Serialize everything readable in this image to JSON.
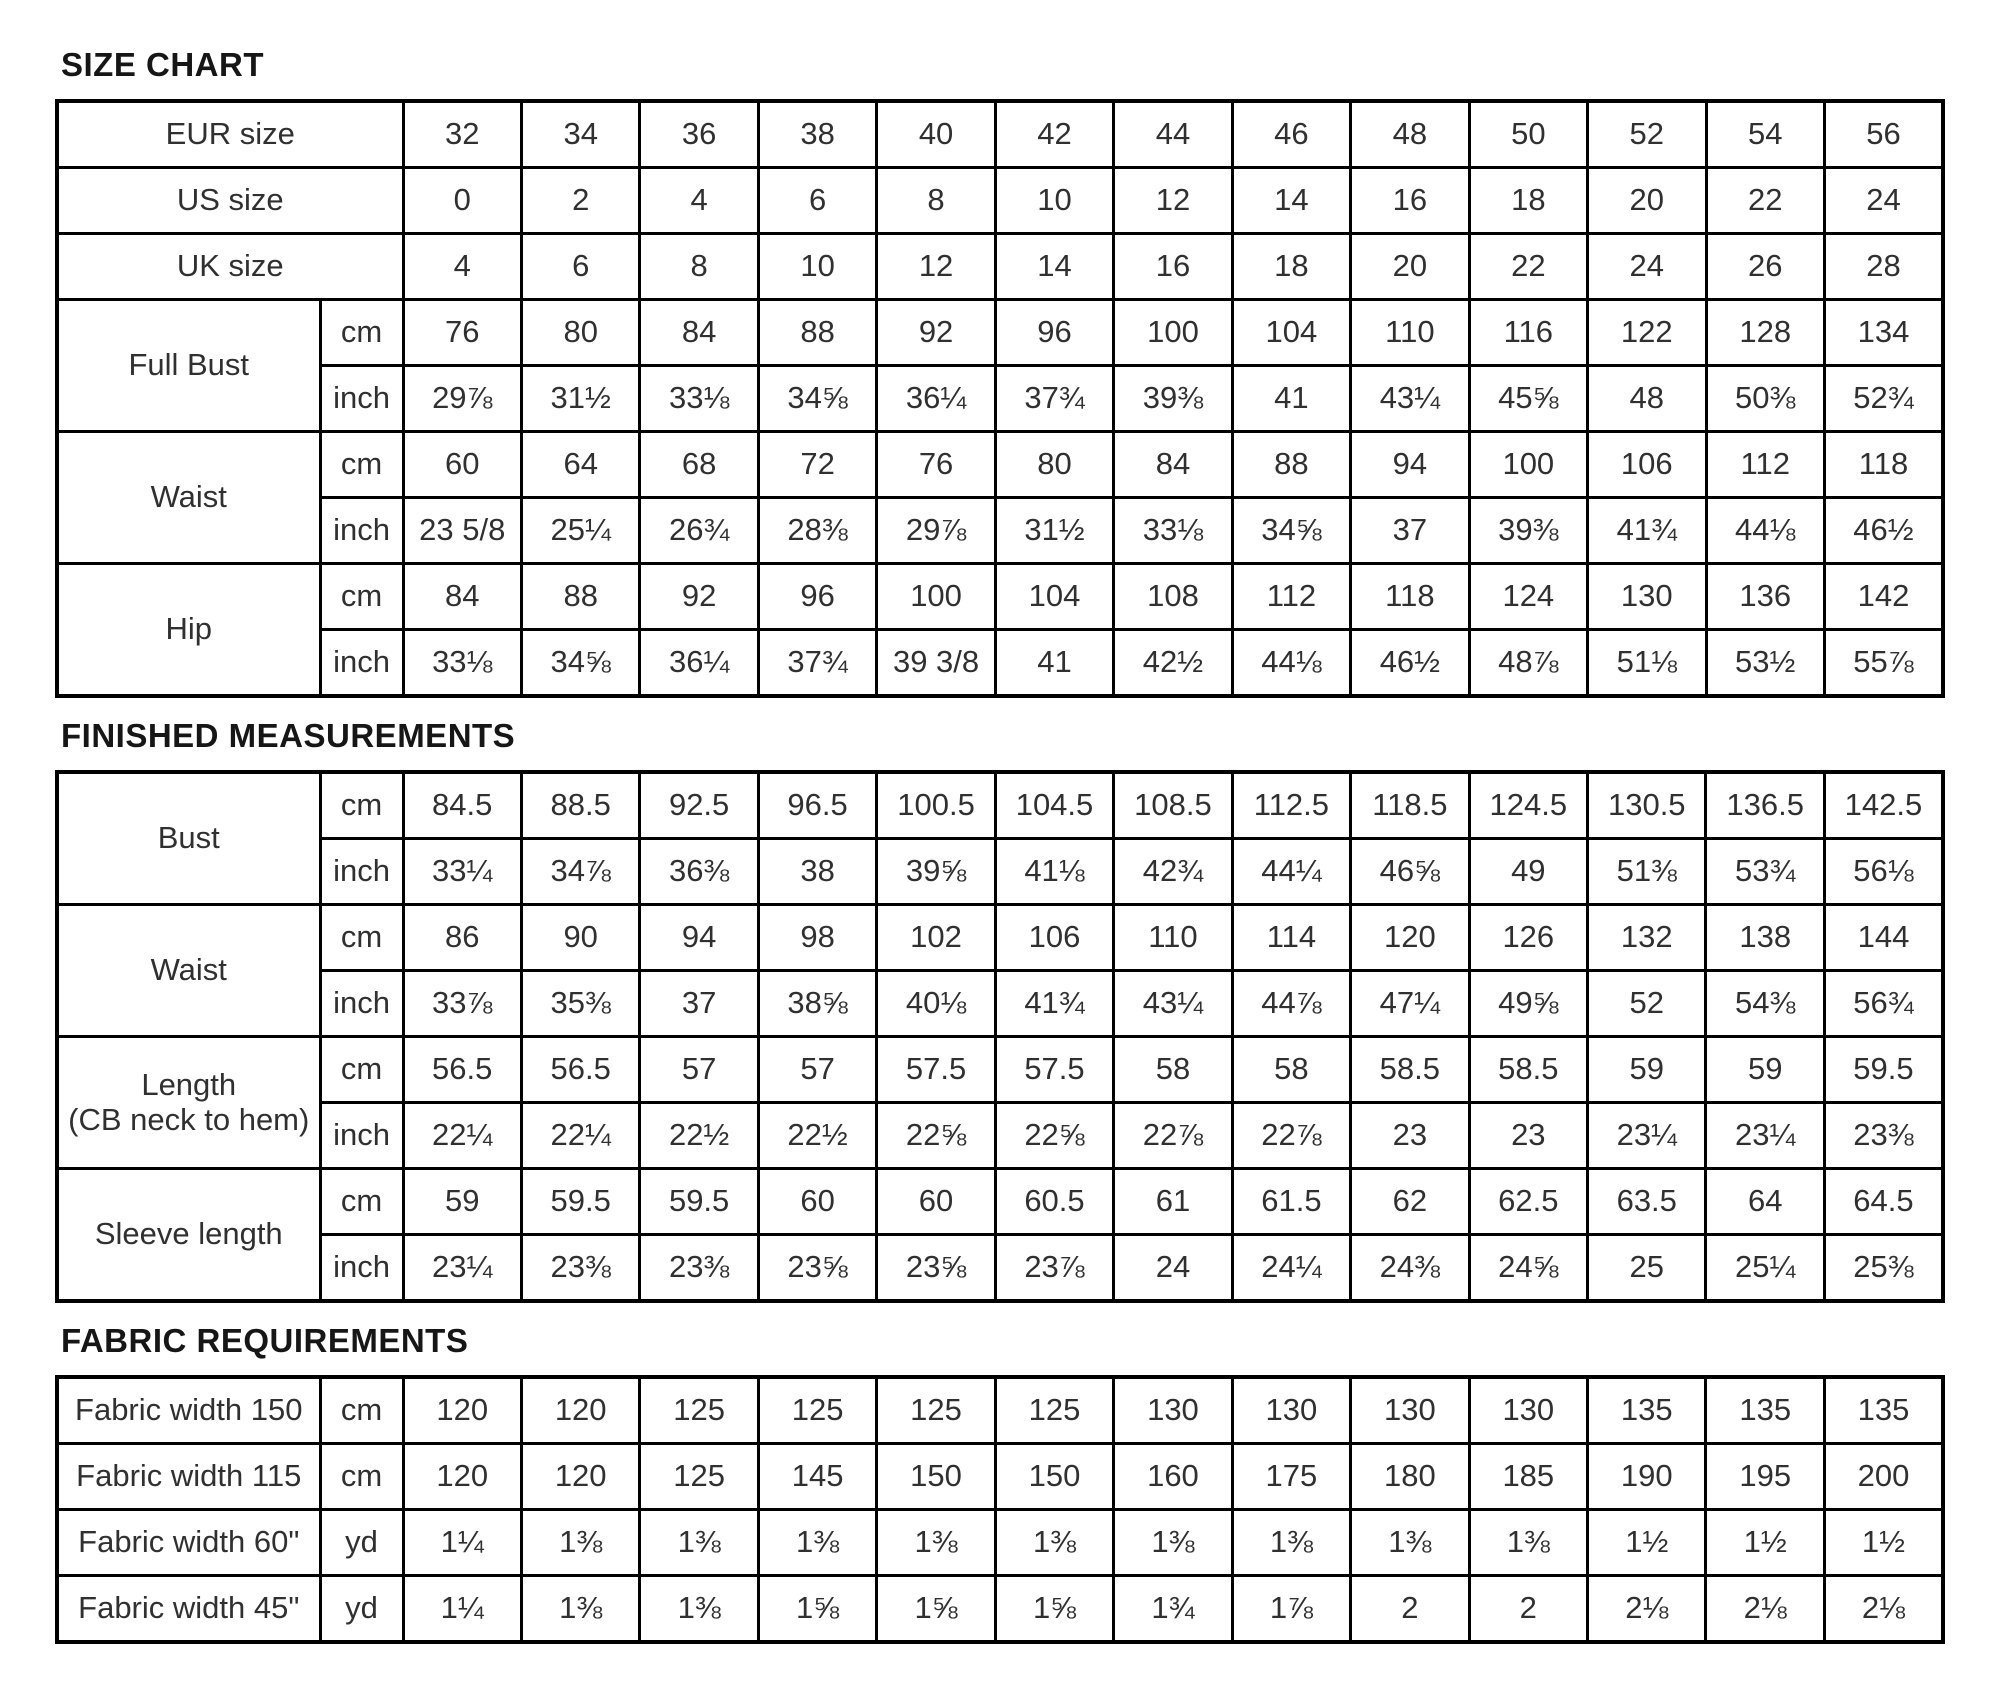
{
  "document": {
    "sections": [
      {
        "id": "size-chart",
        "title": "SIZE CHART",
        "rows": [
          {
            "label": "EUR size",
            "subrows": [
              {
                "unit": "",
                "values": [
                  "32",
                  "34",
                  "36",
                  "38",
                  "40",
                  "42",
                  "44",
                  "46",
                  "48",
                  "50",
                  "52",
                  "54",
                  "56"
                ]
              }
            ]
          },
          {
            "label": "US size",
            "subrows": [
              {
                "unit": "",
                "values": [
                  "0",
                  "2",
                  "4",
                  "6",
                  "8",
                  "10",
                  "12",
                  "14",
                  "16",
                  "18",
                  "20",
                  "22",
                  "24"
                ]
              }
            ]
          },
          {
            "label": "UK size",
            "subrows": [
              {
                "unit": "",
                "values": [
                  "4",
                  "6",
                  "8",
                  "10",
                  "12",
                  "14",
                  "16",
                  "18",
                  "20",
                  "22",
                  "24",
                  "26",
                  "28"
                ]
              }
            ]
          },
          {
            "label": "Full Bust",
            "subrows": [
              {
                "unit": "cm",
                "values": [
                  "76",
                  "80",
                  "84",
                  "88",
                  "92",
                  "96",
                  "100",
                  "104",
                  "110",
                  "116",
                  "122",
                  "128",
                  "134"
                ]
              },
              {
                "unit": "inch",
                "values": [
                  "29⅞",
                  "31½",
                  "33⅛",
                  "34⅝",
                  "36¼",
                  "37¾",
                  "39⅜",
                  "41",
                  "43¼",
                  "45⅝",
                  "48",
                  "50⅜",
                  "52¾"
                ]
              }
            ]
          },
          {
            "label": "Waist",
            "subrows": [
              {
                "unit": "cm",
                "values": [
                  "60",
                  "64",
                  "68",
                  "72",
                  "76",
                  "80",
                  "84",
                  "88",
                  "94",
                  "100",
                  "106",
                  "112",
                  "118"
                ]
              },
              {
                "unit": "inch",
                "values": [
                  "23 5/8",
                  "25¼",
                  "26¾",
                  "28⅜",
                  "29⅞",
                  "31½",
                  "33⅛",
                  "34⅝",
                  "37",
                  "39⅜",
                  "41¾",
                  "44⅛",
                  "46½"
                ]
              }
            ]
          },
          {
            "label": "Hip",
            "subrows": [
              {
                "unit": "cm",
                "values": [
                  "84",
                  "88",
                  "92",
                  "96",
                  "100",
                  "104",
                  "108",
                  "112",
                  "118",
                  "124",
                  "130",
                  "136",
                  "142"
                ]
              },
              {
                "unit": "inch",
                "values": [
                  "33⅛",
                  "34⅝",
                  "36¼",
                  "37¾",
                  "39 3/8",
                  "41",
                  "42½",
                  "44⅛",
                  "46½",
                  "48⅞",
                  "51⅛",
                  "53½",
                  "55⅞"
                ]
              }
            ]
          }
        ]
      },
      {
        "id": "finished-measurements",
        "title": "FINISHED MEASUREMENTS",
        "rows": [
          {
            "label": "Bust",
            "subrows": [
              {
                "unit": "cm",
                "values": [
                  "84.5",
                  "88.5",
                  "92.5",
                  "96.5",
                  "100.5",
                  "104.5",
                  "108.5",
                  "112.5",
                  "118.5",
                  "124.5",
                  "130.5",
                  "136.5",
                  "142.5"
                ]
              },
              {
                "unit": "inch",
                "values": [
                  "33¼",
                  "34⅞",
                  "36⅜",
                  "38",
                  "39⅝",
                  "41⅛",
                  "42¾",
                  "44¼",
                  "46⅝",
                  "49",
                  "51⅜",
                  "53¾",
                  "56⅛"
                ]
              }
            ]
          },
          {
            "label": "Waist",
            "subrows": [
              {
                "unit": "cm",
                "values": [
                  "86",
                  "90",
                  "94",
                  "98",
                  "102",
                  "106",
                  "110",
                  "114",
                  "120",
                  "126",
                  "132",
                  "138",
                  "144"
                ]
              },
              {
                "unit": "inch",
                "values": [
                  "33⅞",
                  "35⅜",
                  "37",
                  "38⅝",
                  "40⅛",
                  "41¾",
                  "43¼",
                  "44⅞",
                  "47¼",
                  "49⅝",
                  "52",
                  "54⅜",
                  "56¾"
                ]
              }
            ]
          },
          {
            "label": "Length\n(CB neck to hem)",
            "subrows": [
              {
                "unit": "cm",
                "values": [
                  "56.5",
                  "56.5",
                  "57",
                  "57",
                  "57.5",
                  "57.5",
                  "58",
                  "58",
                  "58.5",
                  "58.5",
                  "59",
                  "59",
                  "59.5"
                ]
              },
              {
                "unit": "inch",
                "values": [
                  "22¼",
                  "22¼",
                  "22½",
                  "22½",
                  "22⅝",
                  "22⅝",
                  "22⅞",
                  "22⅞",
                  "23",
                  "23",
                  "23¼",
                  "23¼",
                  "23⅜"
                ]
              }
            ]
          },
          {
            "label": "Sleeve length",
            "subrows": [
              {
                "unit": "cm",
                "values": [
                  "59",
                  "59.5",
                  "59.5",
                  "60",
                  "60",
                  "60.5",
                  "61",
                  "61.5",
                  "62",
                  "62.5",
                  "63.5",
                  "64",
                  "64.5"
                ]
              },
              {
                "unit": "inch",
                "values": [
                  "23¼",
                  "23⅜",
                  "23⅜",
                  "23⅝",
                  "23⅝",
                  "23⅞",
                  "24",
                  "24¼",
                  "24⅜",
                  "24⅝",
                  "25",
                  "25¼",
                  "25⅜"
                ]
              }
            ]
          }
        ]
      },
      {
        "id": "fabric-requirements",
        "title": "FABRIC REQUIREMENTS",
        "rows": [
          {
            "label": "Fabric width 150",
            "subrows": [
              {
                "unit": "cm",
                "values": [
                  "120",
                  "120",
                  "125",
                  "125",
                  "125",
                  "125",
                  "130",
                  "130",
                  "130",
                  "130",
                  "135",
                  "135",
                  "135"
                ]
              }
            ]
          },
          {
            "label": "Fabric width 115",
            "subrows": [
              {
                "unit": "cm",
                "values": [
                  "120",
                  "120",
                  "125",
                  "145",
                  "150",
                  "150",
                  "160",
                  "175",
                  "180",
                  "185",
                  "190",
                  "195",
                  "200"
                ]
              }
            ]
          },
          {
            "label": "Fabric width 60\"",
            "subrows": [
              {
                "unit": "yd",
                "values": [
                  "1¼",
                  "1⅜",
                  "1⅜",
                  "1⅜",
                  "1⅜",
                  "1⅜",
                  "1⅜",
                  "1⅜",
                  "1⅜",
                  "1⅜",
                  "1½",
                  "1½",
                  "1½"
                ]
              }
            ]
          },
          {
            "label": "Fabric width 45\"",
            "subrows": [
              {
                "unit": "yd",
                "values": [
                  "1¼",
                  "1⅜",
                  "1⅜",
                  "1⅝",
                  "1⅝",
                  "1⅝",
                  "1¾",
                  "1⅞",
                  "2",
                  "2",
                  "2⅛",
                  "2⅛",
                  "2⅛"
                ]
              }
            ]
          }
        ]
      }
    ]
  }
}
